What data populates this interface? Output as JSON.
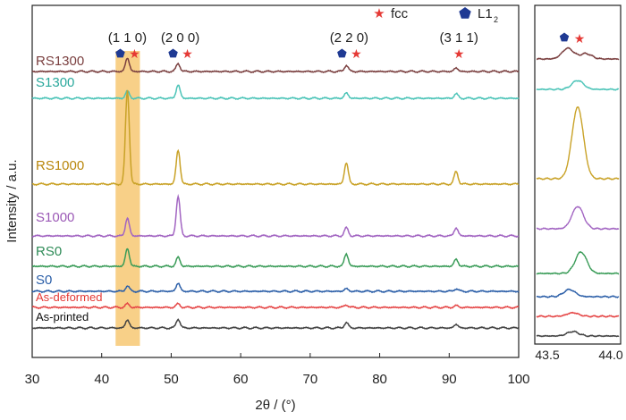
{
  "chart_data": [
    {
      "type": "line",
      "xlabel": "2θ / (°)",
      "ylabel": "Intensity / a.u.",
      "xlim": [
        30,
        100
      ],
      "xticks": [
        "30",
        "40",
        "50",
        "60",
        "70",
        "80",
        "90",
        "100"
      ],
      "yticks": "none",
      "grid": false,
      "legend": {
        "position": "top-right",
        "entries": [
          {
            "symbol": "star",
            "label": "fcc",
            "color": "#e53935"
          },
          {
            "symbol": "pentagon",
            "label": "L1",
            "subscript": "2",
            "color": "#1f3a93"
          }
        ]
      },
      "highlight_band": {
        "x": [
          42,
          45.5
        ],
        "color": "#f5c060"
      },
      "peak_annotations": [
        {
          "label": "(1 1 0)",
          "x": 43.7,
          "markers": [
            "pentagon",
            "star"
          ]
        },
        {
          "label": "(2  0  0)",
          "x": 51.3,
          "markers": [
            "pentagon",
            "star"
          ]
        },
        {
          "label": "(2  2  0)",
          "x": 75.6,
          "markers": [
            "pentagon",
            "star"
          ]
        },
        {
          "label": "(3 1 1)",
          "x": 91.4,
          "markers": [
            "star"
          ]
        }
      ],
      "series": [
        {
          "name": "RS1300",
          "color": "#7a3f3f",
          "label_color": "#7a3f3f",
          "peaks": [
            {
              "x": 43.7,
              "h": 15
            },
            {
              "x": 51.0,
              "h": 9
            },
            {
              "x": 75.2,
              "h": 7
            },
            {
              "x": 91.0,
              "h": 4
            }
          ]
        },
        {
          "name": "S1300",
          "color": "#4cc4b8",
          "label_color": "#2aa89c",
          "peaks": [
            {
              "x": 43.7,
              "h": 8
            },
            {
              "x": 51.0,
              "h": 15
            },
            {
              "x": 75.2,
              "h": 6
            },
            {
              "x": 91.0,
              "h": 5
            }
          ]
        },
        {
          "name": "RS1000",
          "color": "#c9a227",
          "label_color": "#b8860b",
          "peaks": [
            {
              "x": 43.7,
              "h": 105
            },
            {
              "x": 51.0,
              "h": 38
            },
            {
              "x": 75.2,
              "h": 24
            },
            {
              "x": 91.0,
              "h": 14
            }
          ]
        },
        {
          "name": "S1000",
          "color": "#a265c2",
          "label_color": "#9b59b6",
          "peaks": [
            {
              "x": 43.7,
              "h": 20
            },
            {
              "x": 51.0,
              "h": 44
            },
            {
              "x": 75.2,
              "h": 9
            },
            {
              "x": 91.0,
              "h": 9
            }
          ]
        },
        {
          "name": "RS0",
          "color": "#3a9c58",
          "label_color": "#2e8b57",
          "peaks": [
            {
              "x": 43.7,
              "h": 20
            },
            {
              "x": 51.0,
              "h": 10
            },
            {
              "x": 75.2,
              "h": 14
            },
            {
              "x": 91.0,
              "h": 8
            }
          ]
        },
        {
          "name": "S0",
          "color": "#2c5fa8",
          "label_color": "#2c5fa8",
          "peaks": [
            {
              "x": 43.7,
              "h": 6
            },
            {
              "x": 51.0,
              "h": 9
            },
            {
              "x": 75.2,
              "h": 3
            },
            {
              "x": 91.0,
              "h": 3
            }
          ]
        },
        {
          "name": "As-deformed",
          "color": "#e54545",
          "label_color": "#e53935",
          "peaks": [
            {
              "x": 43.7,
              "h": 4
            },
            {
              "x": 51.0,
              "h": 4
            },
            {
              "x": 75.2,
              "h": 3
            },
            {
              "x": 91.0,
              "h": 2
            }
          ]
        },
        {
          "name": "As-printed",
          "color": "#444444",
          "label_color": "#111111",
          "peaks": [
            {
              "x": 43.7,
              "h": 9
            },
            {
              "x": 51.0,
              "h": 10
            },
            {
              "x": 75.2,
              "h": 6
            },
            {
              "x": 91.0,
              "h": 4
            }
          ]
        }
      ]
    },
    {
      "type": "line",
      "xlim": [
        43.5,
        44.0
      ],
      "xticks": [
        "43.5",
        "44.0"
      ],
      "legend_markers": [
        "pentagon",
        "star"
      ],
      "series": [
        {
          "name": "RS1300",
          "color": "#7a3f3f",
          "peaks": [
            {
              "x": 43.69,
              "h": 12
            },
            {
              "x": 43.8,
              "h": 6
            }
          ]
        },
        {
          "name": "S1300",
          "color": "#4cc4b8",
          "peaks": [
            {
              "x": 43.75,
              "h": 10
            }
          ]
        },
        {
          "name": "RS1000",
          "color": "#c9a227",
          "peaks": [
            {
              "x": 43.75,
              "h": 80
            }
          ]
        },
        {
          "name": "S1000",
          "color": "#a265c2",
          "peaks": [
            {
              "x": 43.75,
              "h": 25
            }
          ]
        },
        {
          "name": "RS0",
          "color": "#3a9c58",
          "peaks": [
            {
              "x": 43.77,
              "h": 24
            }
          ]
        },
        {
          "name": "S0",
          "color": "#2c5fa8",
          "peaks": [
            {
              "x": 43.7,
              "h": 8
            }
          ]
        },
        {
          "name": "As-deformed",
          "color": "#e54545",
          "peaks": [
            {
              "x": 43.72,
              "h": 4
            }
          ]
        },
        {
          "name": "As-printed",
          "color": "#444444",
          "peaks": [
            {
              "x": 43.72,
              "h": 5
            }
          ]
        }
      ]
    }
  ]
}
